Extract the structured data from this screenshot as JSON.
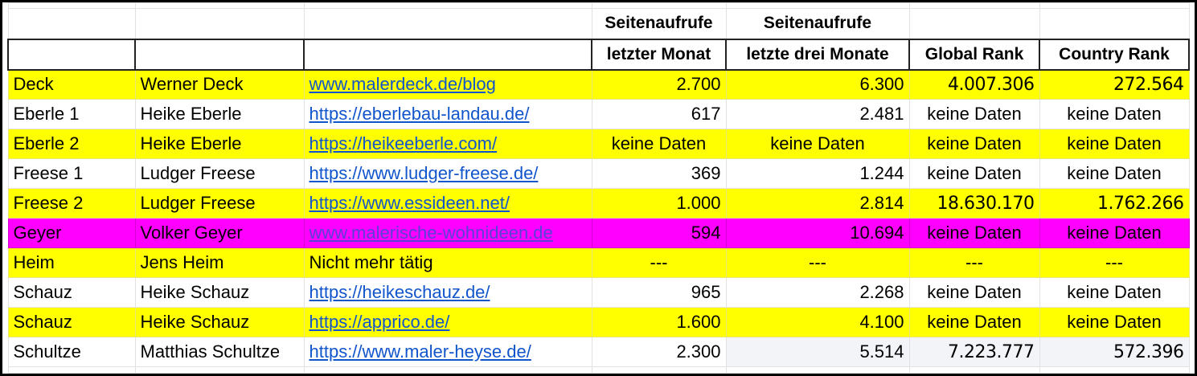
{
  "colors": {
    "highlight_yellow": "#ffff00",
    "highlight_magenta": "#ff00ff",
    "link_blue": "#1155cc",
    "tint_gray": "#f3f4f8"
  },
  "header": {
    "row1": [
      "",
      "",
      "",
      "Seitenaufrufe",
      "Seitenaufrufe",
      "",
      ""
    ],
    "row2": [
      "",
      "",
      "",
      "letzter Monat",
      "letzte drei Monate",
      "Global Rank",
      "Country Rank"
    ]
  },
  "rows": [
    {
      "id": "Deck",
      "name": "Werner Deck",
      "site": "www.malerdeck.de/blog",
      "site_is_link": true,
      "month": "2.700",
      "three_months": "6.300",
      "global_rank": "4.007.306",
      "country_rank": "272.564",
      "highlight": "yellow"
    },
    {
      "id": "Eberle 1",
      "name": "Heike Eberle",
      "site": "https://eberlebau-landau.de/",
      "site_is_link": true,
      "month": "617",
      "three_months": "2.481",
      "global_rank": "keine Daten",
      "country_rank": "keine Daten",
      "highlight": "none"
    },
    {
      "id": "Eberle 2",
      "name": "Heike Eberle",
      "site": "https://heikeeberle.com/",
      "site_is_link": true,
      "month": "keine Daten",
      "three_months": "keine Daten",
      "global_rank": "keine Daten",
      "country_rank": "keine Daten",
      "highlight": "yellow"
    },
    {
      "id": "Freese 1",
      "name": "Ludger Freese",
      "site": "https://www.ludger-freese.de/",
      "site_is_link": true,
      "month": "369",
      "three_months": "1.244",
      "global_rank": "keine Daten",
      "country_rank": "keine Daten",
      "highlight": "none"
    },
    {
      "id": "Freese 2",
      "name": "Ludger Freese",
      "site": "https://www.essideen.net/",
      "site_is_link": true,
      "month": "1.000",
      "three_months": "2.814",
      "global_rank": "18.630.170",
      "country_rank": "1.762.266",
      "highlight": "yellow"
    },
    {
      "id": "Geyer",
      "name": "Volker Geyer",
      "site": "www.malerische-wohnideen.de",
      "site_is_link": true,
      "month": "594",
      "three_months": "10.694",
      "global_rank": "keine Daten",
      "country_rank": "keine Daten",
      "highlight": "magenta"
    },
    {
      "id": "Heim",
      "name": "Jens Heim",
      "site": "Nicht mehr tätig",
      "site_is_link": false,
      "month": "---",
      "three_months": "---",
      "global_rank": "---",
      "country_rank": "---",
      "highlight": "yellow"
    },
    {
      "id": "Schauz",
      "name": "Heike Schauz",
      "site": "https://heikeschauz.de/",
      "site_is_link": true,
      "month": "965",
      "three_months": "2.268",
      "global_rank": "keine Daten",
      "country_rank": "keine Daten",
      "highlight": "none"
    },
    {
      "id": "Schauz",
      "name": "Heike Schauz",
      "site": "https://apprico.de/",
      "site_is_link": true,
      "month": "1.600",
      "three_months": "4.100",
      "global_rank": "keine Daten",
      "country_rank": "keine Daten",
      "highlight": "yellow"
    },
    {
      "id": "Schultze",
      "name": "Matthias Schultze",
      "site": "https://www.maler-heyse.de/",
      "site_is_link": true,
      "month": "2.300",
      "three_months": "5.514",
      "global_rank": "7.223.777",
      "country_rank": "572.396",
      "highlight": "none"
    }
  ]
}
